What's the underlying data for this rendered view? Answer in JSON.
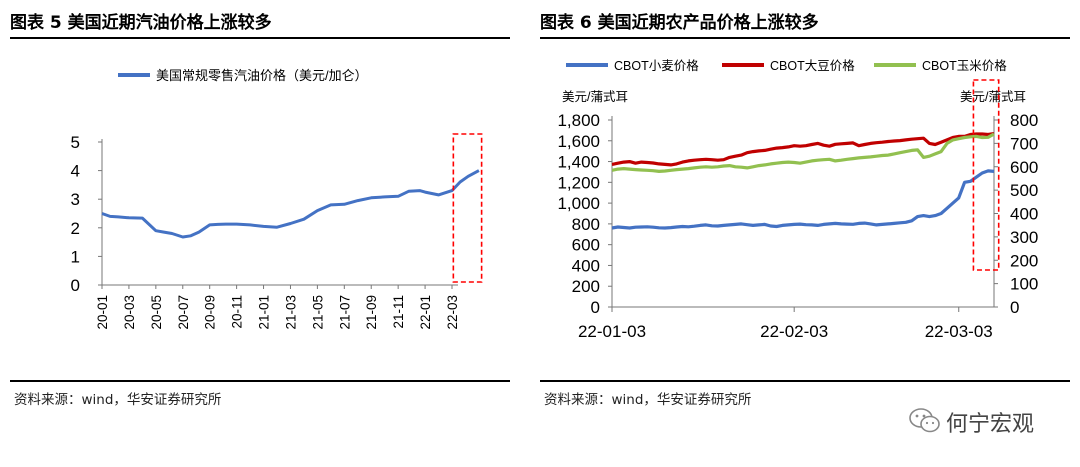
{
  "left": {
    "title": "图表 5  美国近期汽油价格上涨较多",
    "source": "资料来源：wind，华安证券研究所"
  },
  "right": {
    "title": "图表 6  美国近期农产品价格上涨较多",
    "source": "资料来源：wind，华安证券研究所"
  },
  "watermark": {
    "text": "何宁宏观",
    "icon": "wechat-icon"
  },
  "colors": {
    "blue": "#4472c4",
    "red": "#c00000",
    "green": "#92c050",
    "highlight": "#ff0000"
  },
  "chart_data": [
    {
      "type": "line",
      "legend": [
        "美国常规零售汽油价格（美元/加仑）"
      ],
      "ylim": [
        0,
        5
      ],
      "yticks": [
        "0",
        "1",
        "2",
        "3",
        "4",
        "5"
      ],
      "xticks": [
        "20-01",
        "20-03",
        "20-05",
        "20-07",
        "20-09",
        "20-11",
        "21-01",
        "21-03",
        "21-05",
        "21-07",
        "21-09",
        "21-11",
        "22-01",
        "22-03"
      ],
      "series": [
        {
          "name": "美国常规零售汽油价格（美元/加仑）",
          "x_index": [
            0,
            0.3,
            0.6,
            1,
            1.5,
            2,
            2.3,
            2.6,
            3,
            3.3,
            3.6,
            4,
            4.3,
            4.6,
            5,
            5.5,
            6,
            6.5,
            7,
            7.5,
            8,
            8.5,
            9,
            9.5,
            10,
            10.5,
            11,
            11.4,
            11.8,
            12,
            12.5,
            13,
            13.3,
            13.6,
            14
          ],
          "values": [
            2.5,
            2.4,
            2.38,
            2.35,
            2.34,
            1.9,
            1.85,
            1.8,
            1.68,
            1.72,
            1.85,
            2.1,
            2.12,
            2.13,
            2.13,
            2.1,
            2.05,
            2.02,
            2.15,
            2.3,
            2.6,
            2.8,
            2.82,
            2.95,
            3.05,
            3.08,
            3.1,
            3.28,
            3.3,
            3.25,
            3.15,
            3.3,
            3.6,
            3.8,
            4.0
          ]
        }
      ],
      "highlight_range": [
        13.05,
        14.1
      ]
    },
    {
      "type": "line",
      "legend": [
        "CBOT小麦价格",
        "CBOT大豆价格",
        "CBOT玉米价格"
      ],
      "ylabel_left": "美元/蒲式耳",
      "ylabel_right": "美元/蒲式耳",
      "ylim_left": [
        0,
        1800
      ],
      "yticks_left": [
        "0",
        "200",
        "400",
        "600",
        "800",
        "1,000",
        "1,200",
        "1,400",
        "1,600",
        "1,800"
      ],
      "ylim_right": [
        0,
        800
      ],
      "yticks_right": [
        "0",
        "100",
        "200",
        "300",
        "400",
        "500",
        "600",
        "700",
        "800"
      ],
      "xticks": [
        "22-01-03",
        "22-02-03",
        "22-03-03"
      ],
      "x_days": [
        0,
        1,
        2,
        3,
        4,
        5,
        6,
        7,
        8,
        9,
        10,
        11,
        12,
        13,
        14,
        15,
        16,
        17,
        18,
        19,
        20,
        21,
        22,
        23,
        24,
        25,
        26,
        27,
        28,
        29,
        30,
        31,
        32,
        33,
        34,
        35,
        36,
        37,
        38,
        39,
        40,
        41,
        42,
        43,
        44,
        45,
        46,
        47,
        48,
        49,
        50,
        51,
        52,
        53,
        54,
        55,
        56,
        57,
        58,
        59,
        60,
        61,
        62,
        63,
        64,
        65
      ],
      "series": [
        {
          "name": "CBOT小麦价格",
          "axis": "left",
          "values": [
            760,
            770,
            765,
            760,
            768,
            770,
            772,
            768,
            762,
            760,
            764,
            770,
            775,
            772,
            778,
            785,
            790,
            782,
            780,
            785,
            790,
            795,
            800,
            792,
            785,
            790,
            795,
            780,
            775,
            785,
            790,
            795,
            798,
            792,
            790,
            785,
            795,
            800,
            805,
            800,
            798,
            796,
            805,
            808,
            800,
            790,
            795,
            800,
            805,
            810,
            815,
            830,
            870,
            880,
            870,
            880,
            900,
            950,
            1000,
            1050,
            1200,
            1210,
            1250,
            1290,
            1310,
            1305
          ]
        },
        {
          "name": "CBOT大豆价格",
          "axis": "right",
          "values": [
            610,
            615,
            620,
            622,
            615,
            620,
            618,
            616,
            612,
            610,
            608,
            612,
            620,
            625,
            628,
            630,
            632,
            630,
            628,
            630,
            640,
            645,
            650,
            660,
            665,
            668,
            670,
            675,
            680,
            682,
            685,
            690,
            688,
            690,
            695,
            700,
            692,
            688,
            696,
            698,
            700,
            702,
            690,
            695,
            700,
            703,
            705,
            708,
            710,
            712,
            715,
            718,
            720,
            722,
            700,
            695,
            705,
            715,
            725,
            730,
            730,
            738,
            740,
            740,
            738,
            742
          ]
        },
        {
          "name": "CBOT玉米价格",
          "axis": "right",
          "values": [
            585,
            590,
            592,
            590,
            588,
            586,
            585,
            583,
            580,
            582,
            585,
            588,
            590,
            592,
            595,
            598,
            600,
            598,
            600,
            603,
            605,
            600,
            598,
            595,
            600,
            605,
            608,
            612,
            615,
            618,
            620,
            618,
            615,
            620,
            625,
            628,
            630,
            632,
            625,
            628,
            632,
            635,
            638,
            640,
            642,
            645,
            648,
            650,
            655,
            660,
            665,
            670,
            672,
            640,
            645,
            655,
            665,
            700,
            715,
            720,
            725,
            728,
            730,
            725,
            726,
            740
          ]
        }
      ],
      "highlight_range": [
        61.5,
        65.8
      ]
    }
  ]
}
